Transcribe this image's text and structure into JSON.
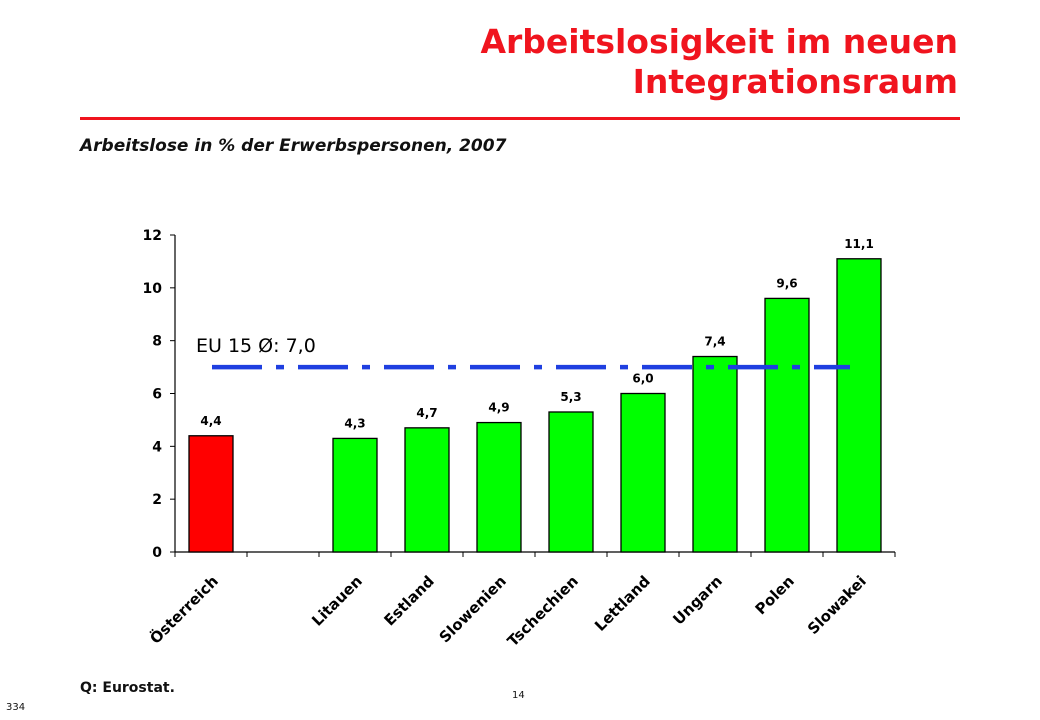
{
  "page": {
    "title_line1": "Arbeitslosigkeit im neuen",
    "title_line2": "Integrationsraum",
    "subtitle": "Arbeitslose in % der Erwerbspersonen, 2007",
    "source": "Q: Eurostat.",
    "page_number": "14",
    "doc_number": "334"
  },
  "colors": {
    "title": "#f0141e",
    "highlight_bar": "#ff0000",
    "bar": "#00ff00",
    "reference_line": "#1f3fe0"
  },
  "chart_data": {
    "type": "bar",
    "categories": [
      "Österreich",
      "",
      "Litauen",
      "Estland",
      "Slowenien",
      "Tschechien",
      "Lettland",
      "Ungarn",
      "Polen",
      "Slowakei"
    ],
    "values": [
      4.4,
      null,
      4.3,
      4.7,
      4.9,
      5.3,
      6.0,
      7.4,
      9.6,
      11.1
    ],
    "value_labels": [
      "4,4",
      "",
      "4,3",
      "4,7",
      "4,9",
      "5,3",
      "6,0",
      "7,4",
      "9,6",
      "11,1"
    ],
    "highlight_index": 0,
    "yticks": [
      "0",
      "2",
      "4",
      "6",
      "8",
      "10",
      "12"
    ],
    "ylim": [
      0,
      12
    ],
    "grid": false,
    "reference_line": {
      "label": "EU 15 Ø: 7,0",
      "value": 7.0
    }
  }
}
